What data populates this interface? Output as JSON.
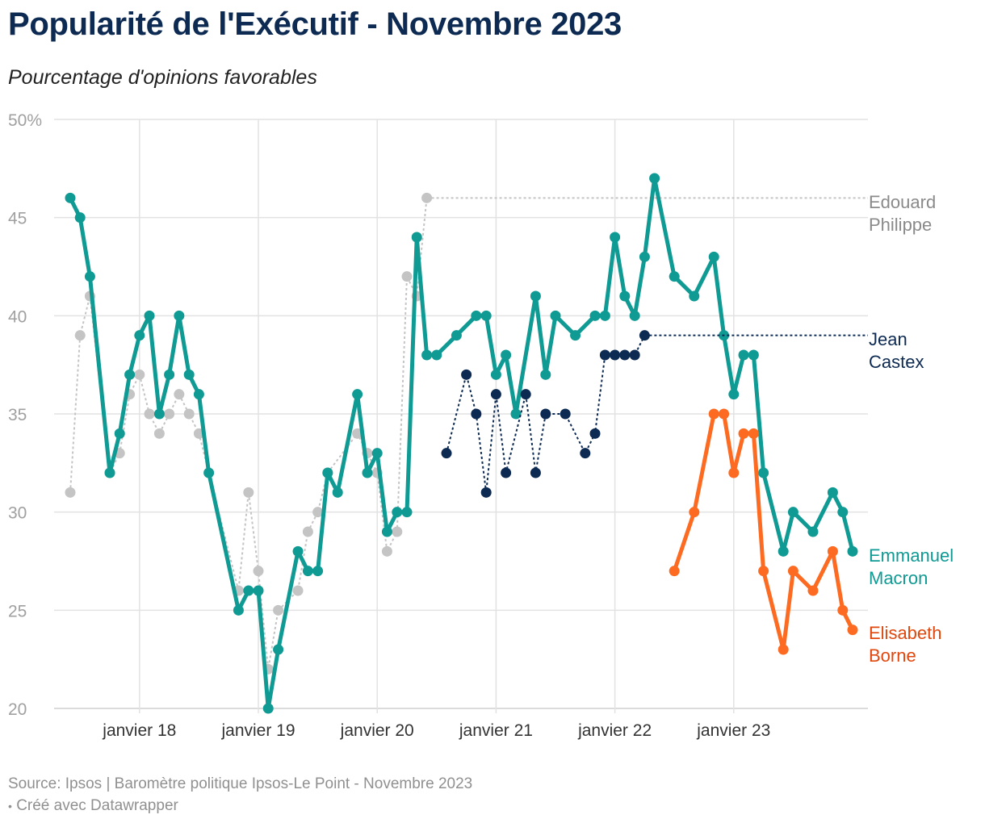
{
  "title": "Popularité de l'Exécutif - Novembre 2023",
  "subtitle": "Pourcentage d'opinions favorables",
  "footer": {
    "source": "Source: Ipsos | Baromètre politique Ipsos-Le Point - Novembre 2023",
    "credit": "Créé avec Datawrapper"
  },
  "chart_data": {
    "type": "line",
    "ylim": [
      20,
      50
    ],
    "yticks": [
      {
        "value": 50,
        "label": "50%"
      },
      {
        "value": 45,
        "label": "45"
      },
      {
        "value": 40,
        "label": "40"
      },
      {
        "value": 35,
        "label": "35"
      },
      {
        "value": 30,
        "label": "30"
      },
      {
        "value": 25,
        "label": "25"
      },
      {
        "value": 20,
        "label": "20"
      }
    ],
    "xlim": [
      2017.33,
      2023.92
    ],
    "xticks": [
      {
        "value": 2018,
        "label": "janvier 18"
      },
      {
        "value": 2019,
        "label": "janvier 19"
      },
      {
        "value": 2020,
        "label": "janvier 20"
      },
      {
        "value": 2021,
        "label": "janvier 21"
      },
      {
        "value": 2022,
        "label": "janvier 22"
      },
      {
        "value": 2023,
        "label": "janvier 23"
      }
    ],
    "series": [
      {
        "name": "Edouard Philippe",
        "label_lines": [
          "Edouard",
          "Philippe"
        ],
        "color": "#c4c4c4",
        "label_color": "#8a8a8a",
        "style": "dotted-small",
        "end_line_value": 46,
        "points": [
          [
            2017.417,
            31
          ],
          [
            2017.5,
            39
          ],
          [
            2017.583,
            41
          ],
          [
            2017.75,
            32
          ],
          [
            2017.833,
            33
          ],
          [
            2017.917,
            36
          ],
          [
            2018.0,
            37
          ],
          [
            2018.083,
            35
          ],
          [
            2018.167,
            34
          ],
          [
            2018.25,
            35
          ],
          [
            2018.333,
            36
          ],
          [
            2018.417,
            35
          ],
          [
            2018.5,
            34
          ],
          [
            2018.833,
            26
          ],
          [
            2018.917,
            31
          ],
          [
            2019.0,
            27
          ],
          [
            2019.083,
            22
          ],
          [
            2019.167,
            25
          ],
          [
            2019.333,
            26
          ],
          [
            2019.417,
            29
          ],
          [
            2019.5,
            30
          ],
          [
            2019.583,
            32
          ],
          [
            2019.833,
            34
          ],
          [
            2019.917,
            33
          ],
          [
            2020.0,
            32
          ],
          [
            2020.083,
            28
          ],
          [
            2020.167,
            29
          ],
          [
            2020.25,
            42
          ],
          [
            2020.333,
            41
          ],
          [
            2020.417,
            46
          ]
        ]
      },
      {
        "name": "Emmanuel Macron",
        "label_lines": [
          "Emmanuel",
          "Macron"
        ],
        "color": "#0f9a94",
        "label_color": "#0f9a94",
        "style": "solid",
        "points": [
          [
            2017.417,
            46
          ],
          [
            2017.5,
            45
          ],
          [
            2017.583,
            42
          ],
          [
            2017.75,
            32
          ],
          [
            2017.833,
            34
          ],
          [
            2017.917,
            37
          ],
          [
            2018.0,
            39
          ],
          [
            2018.083,
            40
          ],
          [
            2018.167,
            35
          ],
          [
            2018.25,
            37
          ],
          [
            2018.333,
            40
          ],
          [
            2018.417,
            37
          ],
          [
            2018.5,
            36
          ],
          [
            2018.583,
            32
          ],
          [
            2018.833,
            25
          ],
          [
            2018.917,
            26
          ],
          [
            2019.0,
            26
          ],
          [
            2019.083,
            20
          ],
          [
            2019.167,
            23
          ],
          [
            2019.333,
            28
          ],
          [
            2019.417,
            27
          ],
          [
            2019.5,
            27
          ],
          [
            2019.583,
            32
          ],
          [
            2019.667,
            31
          ],
          [
            2019.833,
            36
          ],
          [
            2019.917,
            32
          ],
          [
            2020.0,
            33
          ],
          [
            2020.083,
            29
          ],
          [
            2020.167,
            30
          ],
          [
            2020.25,
            30
          ],
          [
            2020.333,
            44
          ],
          [
            2020.417,
            38
          ],
          [
            2020.5,
            38
          ],
          [
            2020.667,
            39
          ],
          [
            2020.833,
            40
          ],
          [
            2020.917,
            40
          ],
          [
            2021.0,
            37
          ],
          [
            2021.083,
            38
          ],
          [
            2021.167,
            35
          ],
          [
            2021.333,
            41
          ],
          [
            2021.417,
            37
          ],
          [
            2021.5,
            40
          ],
          [
            2021.667,
            39
          ],
          [
            2021.833,
            40
          ],
          [
            2021.917,
            40
          ],
          [
            2022.0,
            44
          ],
          [
            2022.083,
            41
          ],
          [
            2022.167,
            40
          ],
          [
            2022.25,
            43
          ],
          [
            2022.333,
            47
          ],
          [
            2022.5,
            42
          ],
          [
            2022.667,
            41
          ],
          [
            2022.833,
            43
          ],
          [
            2022.917,
            39
          ],
          [
            2023.0,
            36
          ],
          [
            2023.083,
            38
          ],
          [
            2023.167,
            38
          ],
          [
            2023.25,
            32
          ],
          [
            2023.417,
            28
          ],
          [
            2023.5,
            30
          ],
          [
            2023.667,
            29
          ],
          [
            2023.833,
            31
          ],
          [
            2023.917,
            30
          ],
          [
            2024.0,
            28
          ]
        ]
      },
      {
        "name": "Jean Castex",
        "label_lines": [
          "Jean",
          "Castex"
        ],
        "color": "#0d2a52",
        "label_color": "#0d2a52",
        "style": "dotted-dark",
        "end_line_value": 39,
        "points": [
          [
            2020.583,
            33
          ],
          [
            2020.75,
            37
          ],
          [
            2020.833,
            35
          ],
          [
            2020.917,
            31
          ],
          [
            2021.0,
            36
          ],
          [
            2021.083,
            32
          ],
          [
            2021.25,
            36
          ],
          [
            2021.333,
            32
          ],
          [
            2021.417,
            35
          ],
          [
            2021.583,
            35
          ],
          [
            2021.75,
            33
          ],
          [
            2021.833,
            34
          ],
          [
            2021.917,
            38
          ],
          [
            2022.0,
            38
          ],
          [
            2022.083,
            38
          ],
          [
            2022.167,
            38
          ],
          [
            2022.25,
            39
          ]
        ]
      },
      {
        "name": "Elisabeth Borne",
        "label_lines": [
          "Elisabeth",
          "Borne"
        ],
        "color": "#fc6b21",
        "label_color": "#e0470d",
        "style": "solid",
        "points": [
          [
            2022.5,
            27
          ],
          [
            2022.667,
            30
          ],
          [
            2022.833,
            35
          ],
          [
            2022.917,
            35
          ],
          [
            2023.0,
            32
          ],
          [
            2023.083,
            34
          ],
          [
            2023.167,
            34
          ],
          [
            2023.25,
            27
          ],
          [
            2023.417,
            23
          ],
          [
            2023.5,
            27
          ],
          [
            2023.667,
            26
          ],
          [
            2023.833,
            28
          ],
          [
            2023.917,
            25
          ],
          [
            2024.0,
            24
          ]
        ]
      }
    ]
  }
}
